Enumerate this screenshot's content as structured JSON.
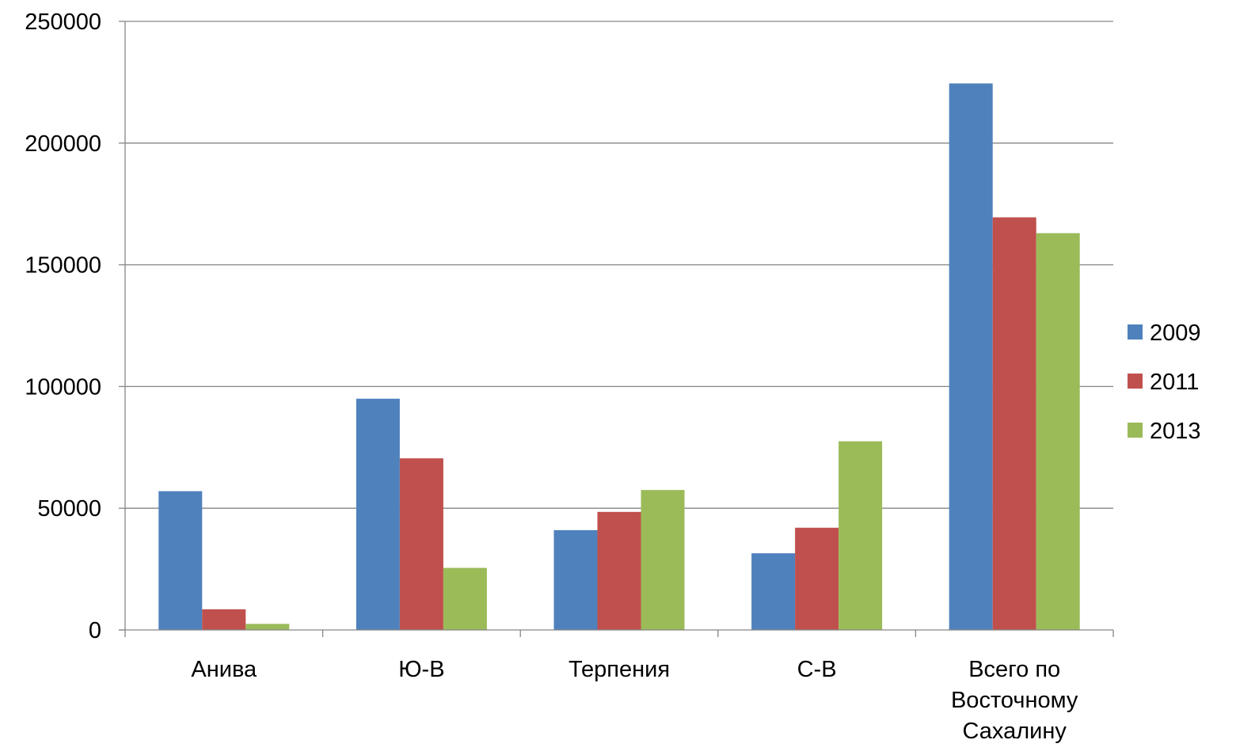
{
  "chart_data": {
    "type": "bar",
    "title": "",
    "xlabel": "",
    "ylabel": "",
    "ylim": [
      0,
      250000
    ],
    "yticks": [
      0,
      50000,
      100000,
      150000,
      200000,
      250000
    ],
    "grid": true,
    "legend_position": "right",
    "categories": [
      [
        "Анива"
      ],
      [
        "Ю-В"
      ],
      [
        "Терпения"
      ],
      [
        "С-В"
      ],
      [
        "Всего по",
        "Восточному",
        "Сахалину"
      ]
    ],
    "series": [
      {
        "name": "2009",
        "color": "#4F81BD",
        "values": [
          57000,
          95000,
          41000,
          31500,
          224500
        ]
      },
      {
        "name": "2011",
        "color": "#C0504D",
        "values": [
          8500,
          70500,
          48500,
          42000,
          169500
        ]
      },
      {
        "name": "2013",
        "color": "#9BBB59",
        "values": [
          2500,
          25500,
          57500,
          77500,
          163000
        ]
      }
    ]
  }
}
